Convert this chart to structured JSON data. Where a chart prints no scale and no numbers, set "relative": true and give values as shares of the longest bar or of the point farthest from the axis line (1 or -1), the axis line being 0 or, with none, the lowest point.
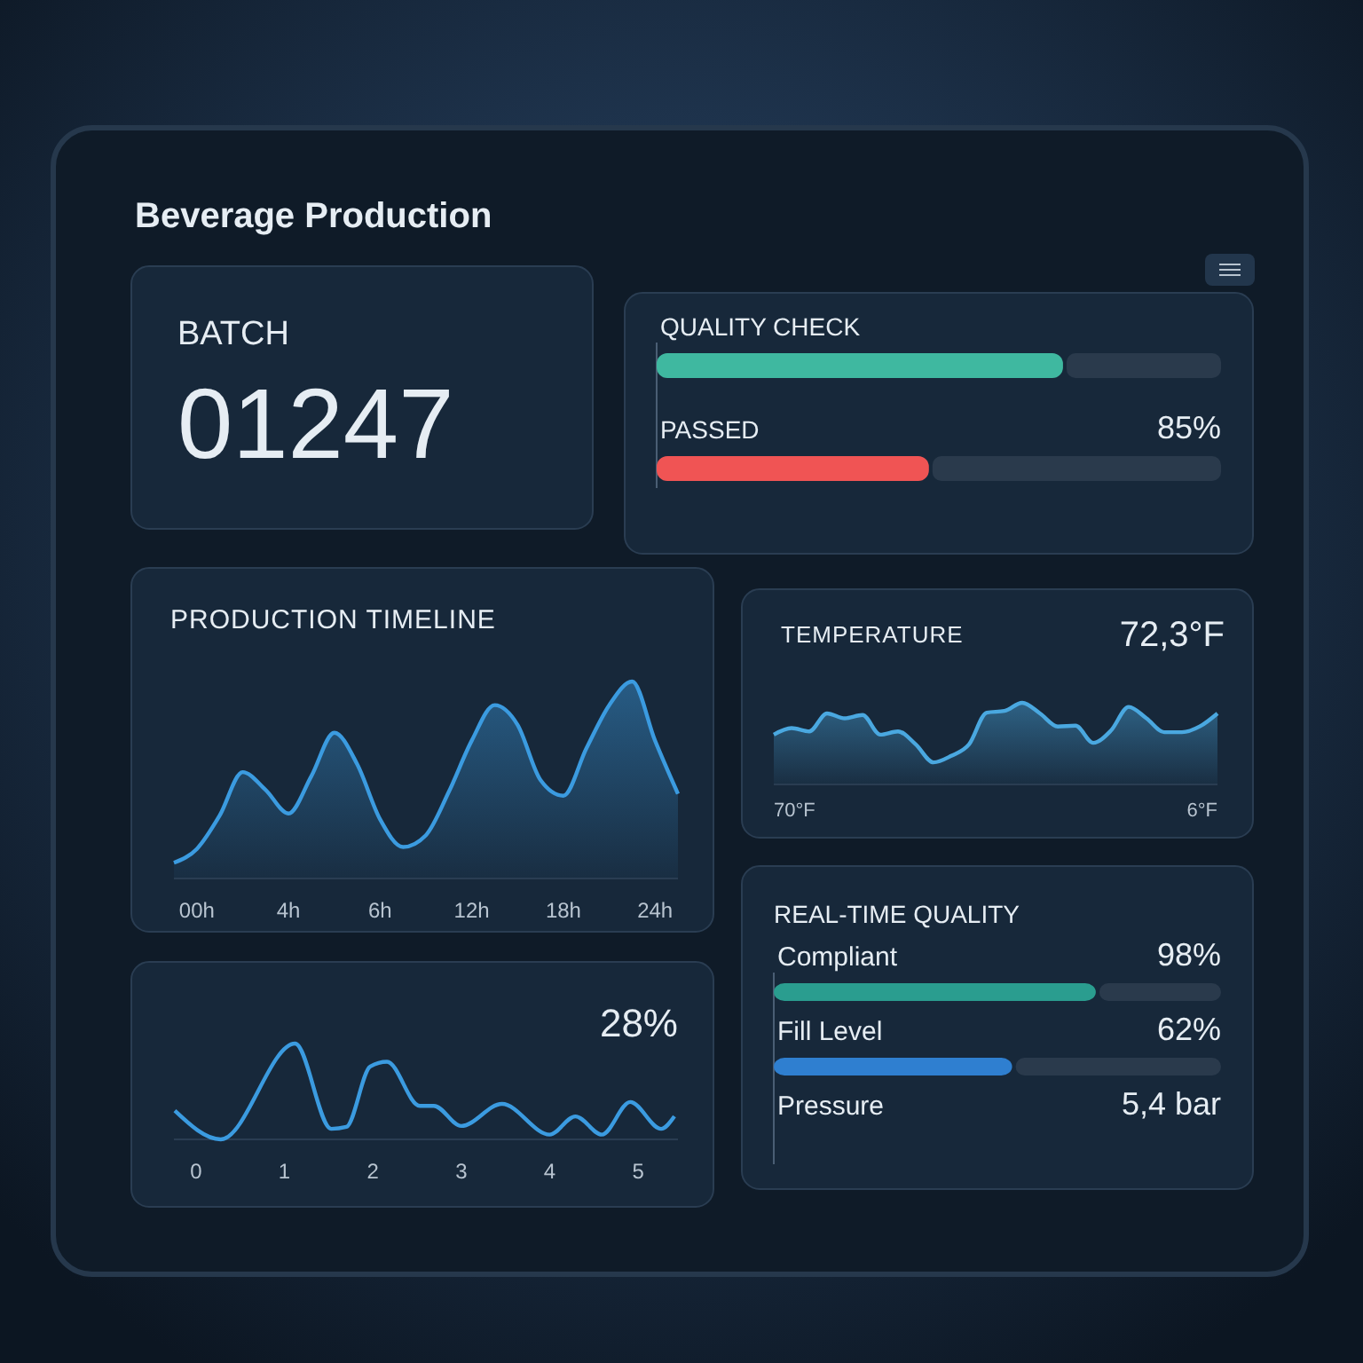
{
  "chart_data": [
    {
      "type": "other",
      "title": "Beverage Production",
      "annotations": [
        "BATCH",
        "01247"
      ]
    },
    {
      "type": "bar",
      "orientation": "horizontal",
      "relative": true,
      "categories": [
        "QUALITY CHECK",
        "PASSED"
      ],
      "values": [
        1,
        0.67
      ],
      "colors": [
        "#3fb8a0",
        "#f05454"
      ],
      "annotations": [
        "85%"
      ]
    },
    {
      "type": "area",
      "title": "PRODUCTION TIMELINE",
      "relative": true,
      "color": "#3b9be0",
      "categories": [
        null,
        "00h",
        null,
        null,
        null,
        "4h",
        null,
        null,
        null,
        "6h",
        null,
        null,
        null,
        "12h",
        null,
        null,
        null,
        "18h",
        null,
        null,
        null,
        "24h",
        null
      ],
      "values": [
        0.08,
        0.15,
        0.32,
        0.54,
        0.45,
        0.33,
        0.52,
        0.74,
        0.58,
        0.3,
        0.16,
        0.22,
        0.44,
        0.7,
        0.88,
        0.78,
        0.5,
        0.42,
        0.66,
        0.88,
        1,
        0.7,
        0.43
      ]
    },
    {
      "type": "area",
      "title": "TEMPERATURE",
      "relative": true,
      "color": "#4aa8e0",
      "categories": [
        null,
        null,
        null,
        null,
        null,
        null,
        null,
        null,
        null,
        null,
        null,
        null,
        null,
        null,
        null,
        null,
        null,
        null,
        null,
        null,
        null,
        null,
        null,
        null,
        null,
        null
      ],
      "values": [
        0.61,
        0.69,
        0.65,
        0.87,
        0.81,
        0.85,
        0.61,
        0.65,
        0.49,
        0.27,
        0.35,
        0.49,
        0.88,
        0.9,
        1,
        0.87,
        0.71,
        0.72,
        0.51,
        0.66,
        0.95,
        0.81,
        0.64,
        0.64,
        0.71,
        0.87
      ],
      "annotations": [
        "72,3°F",
        "70°F",
        "6°F"
      ]
    },
    {
      "type": "line",
      "relative": true,
      "color": "#3b9be0",
      "x": [
        -0.24,
        0.28,
        1.12,
        1.53,
        1.7,
        1.97,
        2.16,
        2.53,
        2.69,
        3.0,
        3.46,
        4.0,
        4.29,
        4.59,
        4.91,
        5.26,
        5.41
      ],
      "values": [
        0.3,
        0,
        1,
        0.11,
        0.13,
        0.76,
        0.81,
        0.35,
        0.35,
        0.14,
        0.37,
        0.05,
        0.24,
        0.05,
        0.39,
        0.11,
        0.24
      ],
      "xlim": [
        -0.25,
        5.45
      ],
      "xticks": [
        0,
        1,
        2,
        3,
        4,
        5
      ],
      "annotations": [
        "28%"
      ]
    },
    {
      "type": "bar",
      "orientation": "horizontal",
      "relative": true,
      "title": "REAL-TIME QUALITY",
      "categories": [
        "Compliant",
        "Fill Level",
        "Pressure"
      ],
      "values": [
        1,
        0.74,
        null
      ],
      "colors": [
        "#2a9d8f",
        "#2f7fd0",
        "#2f7fd0"
      ],
      "annotations": [
        "98%",
        "62%",
        "5,4 bar"
      ]
    }
  ]
}
